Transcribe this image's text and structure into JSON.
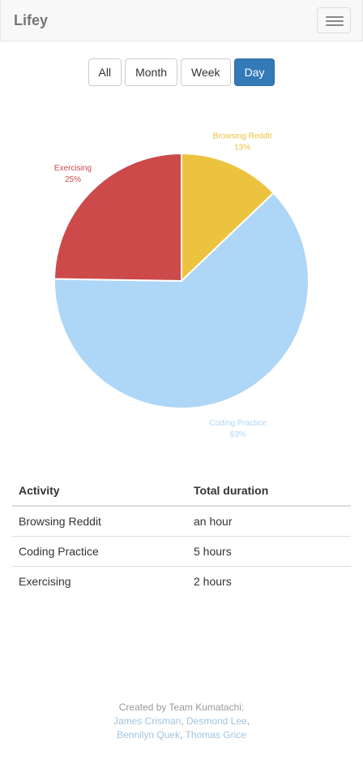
{
  "navbar": {
    "brand": "Lifey",
    "toggle_icon": "hamburger-menu-icon"
  },
  "filters": [
    {
      "label": "All",
      "active": false
    },
    {
      "label": "Month",
      "active": false
    },
    {
      "label": "Week",
      "active": false
    },
    {
      "label": "Day",
      "active": true
    }
  ],
  "chart_data": {
    "type": "pie",
    "categories": [
      "Browsing Reddit",
      "Coding Practice",
      "Exercising"
    ],
    "values": [
      13,
      63,
      25
    ],
    "value_labels": [
      "13%",
      "63%",
      "25%"
    ],
    "colors": [
      "#ecc33f",
      "#aed6f7",
      "#cc4a4a"
    ],
    "title": ""
  },
  "table": {
    "headers": [
      "Activity",
      "Total duration"
    ],
    "rows": [
      [
        "Browsing Reddit",
        "an hour"
      ],
      [
        "Coding Practice",
        "5 hours"
      ],
      [
        "Exercising",
        "2 hours"
      ]
    ]
  },
  "footer": {
    "credit": "Created by Team Kumatachi:",
    "members": [
      "James Crisman",
      "Desmond Lee",
      "Bennilyn Quek",
      "Thomas Grice"
    ],
    "separator": ", "
  }
}
